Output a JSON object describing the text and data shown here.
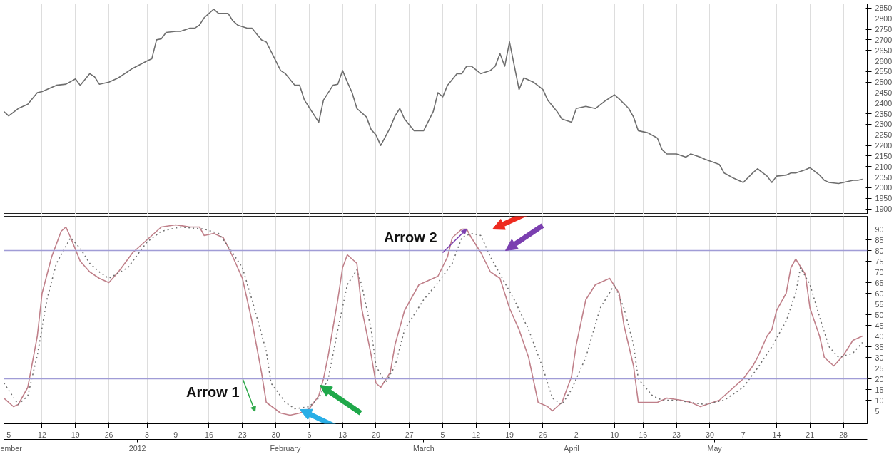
{
  "chart_data": [
    {
      "type": "line",
      "grid": "x",
      "tick_labels": "y",
      "xlim": [
        "2011-12-04",
        "2012-06-02"
      ],
      "ylim": [
        1875,
        2870
      ],
      "xticks": [
        {
          "value": "2011-12-05",
          "label": null
        },
        {
          "value": "2011-12-12",
          "label": null
        },
        {
          "value": "2011-12-19",
          "label": null
        },
        {
          "value": "2011-12-26",
          "label": null
        },
        {
          "value": "2012-01-03",
          "label": null
        },
        {
          "value": "2012-01-09",
          "label": null
        },
        {
          "value": "2012-01-16",
          "label": null
        },
        {
          "value": "2012-01-23",
          "label": null
        },
        {
          "value": "2012-01-30",
          "label": null
        },
        {
          "value": "2012-02-06",
          "label": null
        },
        {
          "value": "2012-02-13",
          "label": null
        },
        {
          "value": "2012-02-20",
          "label": null
        },
        {
          "value": "2012-02-27",
          "label": null
        },
        {
          "value": "2012-03-05",
          "label": null
        },
        {
          "value": "2012-03-12",
          "label": null
        },
        {
          "value": "2012-03-19",
          "label": null
        },
        {
          "value": "2012-03-26",
          "label": null
        },
        {
          "value": "2012-04-02",
          "label": null
        },
        {
          "value": "2012-04-10",
          "label": null
        },
        {
          "value": "2012-04-16",
          "label": null
        },
        {
          "value": "2012-04-23",
          "label": null
        },
        {
          "value": "2012-04-30",
          "label": null
        },
        {
          "value": "2012-05-07",
          "label": null
        },
        {
          "value": "2012-05-14",
          "label": null
        },
        {
          "value": "2012-05-21",
          "label": null
        },
        {
          "value": "2012-05-28",
          "label": null
        }
      ],
      "yticks": [
        1900,
        1950,
        2000,
        2050,
        2100,
        2150,
        2200,
        2250,
        2300,
        2350,
        2400,
        2450,
        2500,
        2550,
        2600,
        2650,
        2700,
        2750,
        2800,
        2850
      ],
      "series": [
        {
          "color": "#6e6e6e",
          "x": [
            "2011-12-04",
            "2011-12-05",
            "2011-12-07",
            "2011-12-09",
            "2011-12-11",
            "2011-12-12",
            "2011-12-15",
            "2011-12-17",
            "2011-12-19",
            "2011-12-20",
            "2011-12-22",
            "2011-12-23",
            "2011-12-24",
            "2011-12-26",
            "2011-12-28",
            "2011-12-31",
            "2012-01-03",
            "2012-01-04",
            "2012-01-05",
            "2012-01-06",
            "2012-01-07",
            "2012-01-09",
            "2012-01-10",
            "2012-01-12",
            "2012-01-13",
            "2012-01-14",
            "2012-01-15",
            "2012-01-17",
            "2012-01-18",
            "2012-01-20",
            "2012-01-21",
            "2012-01-22",
            "2012-01-24",
            "2012-01-25",
            "2012-01-27",
            "2012-01-28",
            "2012-01-29",
            "2012-01-31",
            "2012-02-01",
            "2012-02-03",
            "2012-02-04",
            "2012-02-05",
            "2012-02-08",
            "2012-02-09",
            "2012-02-11",
            "2012-02-12",
            "2012-02-13",
            "2012-02-14",
            "2012-02-15",
            "2012-02-16",
            "2012-02-18",
            "2012-02-19",
            "2012-02-20",
            "2012-02-21",
            "2012-02-23",
            "2012-02-24",
            "2012-02-25",
            "2012-02-26",
            "2012-02-28",
            "2012-03-01",
            "2012-03-03",
            "2012-03-04",
            "2012-03-05",
            "2012-03-06",
            "2012-03-08",
            "2012-03-09",
            "2012-03-10",
            "2012-03-11",
            "2012-03-13",
            "2012-03-15",
            "2012-03-16",
            "2012-03-17",
            "2012-03-18",
            "2012-03-19",
            "2012-03-21",
            "2012-03-22",
            "2012-03-24",
            "2012-03-26",
            "2012-03-27",
            "2012-03-29",
            "2012-03-30",
            "2012-04-01",
            "2012-04-02",
            "2012-04-04",
            "2012-04-06",
            "2012-04-08",
            "2012-04-10",
            "2012-04-11",
            "2012-04-13",
            "2012-04-14",
            "2012-04-15",
            "2012-04-17",
            "2012-04-19",
            "2012-04-20",
            "2012-04-21",
            "2012-04-23",
            "2012-04-25",
            "2012-04-26",
            "2012-04-28",
            "2012-04-29",
            "2012-05-02",
            "2012-05-03",
            "2012-05-05",
            "2012-05-07",
            "2012-05-09",
            "2012-05-10",
            "2012-05-12",
            "2012-05-13",
            "2012-05-14",
            "2012-05-16",
            "2012-05-17",
            "2012-05-18",
            "2012-05-20",
            "2012-05-21",
            "2012-05-23",
            "2012-05-24",
            "2012-05-25",
            "2012-05-27",
            "2012-05-28",
            "2012-05-30",
            "2012-05-31",
            "2012-06-01"
          ],
          "values": [
            2360,
            2340,
            2375,
            2395,
            2450,
            2455,
            2485,
            2490,
            2515,
            2485,
            2540,
            2525,
            2490,
            2500,
            2520,
            2565,
            2600,
            2610,
            2700,
            2705,
            2735,
            2740,
            2740,
            2755,
            2755,
            2770,
            2805,
            2845,
            2825,
            2825,
            2790,
            2770,
            2755,
            2755,
            2700,
            2690,
            2645,
            2555,
            2540,
            2485,
            2485,
            2415,
            2310,
            2415,
            2485,
            2490,
            2555,
            2500,
            2450,
            2375,
            2335,
            2275,
            2250,
            2200,
            2285,
            2340,
            2375,
            2325,
            2270,
            2270,
            2360,
            2450,
            2430,
            2485,
            2540,
            2540,
            2575,
            2575,
            2540,
            2555,
            2575,
            2635,
            2575,
            2690,
            2465,
            2520,
            2500,
            2465,
            2415,
            2360,
            2325,
            2310,
            2375,
            2385,
            2375,
            2410,
            2440,
            2420,
            2375,
            2335,
            2270,
            2260,
            2235,
            2180,
            2160,
            2160,
            2145,
            2160,
            2145,
            2135,
            2110,
            2070,
            2045,
            2025,
            2070,
            2090,
            2055,
            2025,
            2055,
            2060,
            2070,
            2070,
            2085,
            2095,
            2060,
            2035,
            2025,
            2020,
            2025,
            2035,
            2035,
            2040
          ]
        }
      ]
    },
    {
      "type": "line",
      "grid": "x",
      "xlim": [
        "2011-12-04",
        "2012-06-02"
      ],
      "ylim": [
        -1,
        96
      ],
      "xticks": [
        {
          "value": "2011-12-05",
          "label": "5"
        },
        {
          "value": "2011-12-12",
          "label": "12"
        },
        {
          "value": "2011-12-19",
          "label": "19"
        },
        {
          "value": "2011-12-26",
          "label": "26"
        },
        {
          "value": "2012-01-03",
          "label": "3"
        },
        {
          "value": "2012-01-09",
          "label": "9"
        },
        {
          "value": "2012-01-16",
          "label": "16"
        },
        {
          "value": "2012-01-23",
          "label": "23"
        },
        {
          "value": "2012-01-30",
          "label": "30"
        },
        {
          "value": "2012-02-06",
          "label": "6"
        },
        {
          "value": "2012-02-13",
          "label": "13"
        },
        {
          "value": "2012-02-20",
          "label": "20"
        },
        {
          "value": "2012-02-27",
          "label": "27"
        },
        {
          "value": "2012-03-05",
          "label": "5"
        },
        {
          "value": "2012-03-12",
          "label": "12"
        },
        {
          "value": "2012-03-19",
          "label": "19"
        },
        {
          "value": "2012-03-26",
          "label": "26"
        },
        {
          "value": "2012-04-02",
          "label": "2"
        },
        {
          "value": "2012-04-10",
          "label": "10"
        },
        {
          "value": "2012-04-16",
          "label": "16"
        },
        {
          "value": "2012-04-23",
          "label": "23"
        },
        {
          "value": "2012-04-30",
          "label": "30"
        },
        {
          "value": "2012-05-07",
          "label": "7"
        },
        {
          "value": "2012-05-14",
          "label": "14"
        },
        {
          "value": "2012-05-21",
          "label": "21"
        },
        {
          "value": "2012-05-28",
          "label": "28"
        }
      ],
      "x2lim": [
        "2011-12-04",
        "2012-06-02"
      ],
      "x2ticks": [
        {
          "value": "2011-12-04",
          "label": "ember"
        },
        {
          "value": "2012-01-01",
          "label": "2012"
        },
        {
          "value": "2012-02-01",
          "label": "February"
        },
        {
          "value": "2012-03-01",
          "label": "March"
        },
        {
          "value": "2012-04-01",
          "label": "April"
        },
        {
          "value": "2012-05-01",
          "label": "May"
        }
      ],
      "yticks": [
        5,
        10,
        15,
        20,
        25,
        30,
        35,
        40,
        45,
        50,
        55,
        60,
        65,
        70,
        75,
        80,
        85,
        90
      ],
      "ref_lines": [
        {
          "axis": "y",
          "value": 80,
          "color": "#a09cd6"
        },
        {
          "axis": "y",
          "value": 20,
          "color": "#a09cd6"
        }
      ],
      "annotations": [
        "Arrow 1",
        {
          "text": "Arrow 2",
          "x": "2012-03-10",
          "y": 90
        }
      ],
      "series": [
        {
          "color": "#c0808a",
          "line_style": "solid",
          "x": [
            "2011-12-04",
            "2011-12-06",
            "2011-12-07",
            "2011-12-09",
            "2011-12-11",
            "2011-12-12",
            "2011-12-14",
            "2011-12-16",
            "2011-12-17",
            "2011-12-18",
            "2011-12-20",
            "2011-12-22",
            "2011-12-24",
            "2011-12-26",
            "2011-12-28",
            "2011-12-31",
            "2012-01-04",
            "2012-01-06",
            "2012-01-09",
            "2012-01-12",
            "2012-01-14",
            "2012-01-15",
            "2012-01-17",
            "2012-01-19",
            "2012-01-21",
            "2012-01-23",
            "2012-01-25",
            "2012-01-27",
            "2012-01-28",
            "2012-01-31",
            "2012-02-02",
            "2012-02-04",
            "2012-02-06",
            "2012-02-08",
            "2012-02-09",
            "2012-02-10",
            "2012-02-12",
            "2012-02-13",
            "2012-02-14",
            "2012-02-16",
            "2012-02-17",
            "2012-02-19",
            "2012-02-20",
            "2012-02-21",
            "2012-02-23",
            "2012-02-24",
            "2012-02-26",
            "2012-02-29",
            "2012-03-03",
            "2012-03-04",
            "2012-03-06",
            "2012-03-07",
            "2012-03-09",
            "2012-03-10",
            "2012-03-11",
            "2012-03-13",
            "2012-03-15",
            "2012-03-17",
            "2012-03-19",
            "2012-03-21",
            "2012-03-23",
            "2012-03-25",
            "2012-03-27",
            "2012-03-28",
            "2012-03-30",
            "2012-04-01",
            "2012-04-02",
            "2012-04-04",
            "2012-04-06",
            "2012-04-09",
            "2012-04-11",
            "2012-04-12",
            "2012-04-14",
            "2012-04-15",
            "2012-04-17",
            "2012-04-19",
            "2012-04-21",
            "2012-04-24",
            "2012-04-26",
            "2012-04-28",
            "2012-05-02",
            "2012-05-03",
            "2012-05-05",
            "2012-05-07",
            "2012-05-09",
            "2012-05-10",
            "2012-05-12",
            "2012-05-13",
            "2012-05-14",
            "2012-05-16",
            "2012-05-17",
            "2012-05-18",
            "2012-05-20",
            "2012-05-21",
            "2012-05-23",
            "2012-05-24",
            "2012-05-26",
            "2012-05-28",
            "2012-05-30",
            "2012-06-01"
          ],
          "values": [
            11,
            7,
            8,
            16,
            40,
            60,
            77,
            89,
            91,
            86,
            75,
            70,
            67,
            65,
            70,
            79,
            87,
            91,
            92,
            91,
            91,
            87,
            88,
            86,
            77,
            67,
            47,
            23,
            9,
            4,
            3,
            4,
            6,
            12,
            20,
            31,
            57,
            72,
            78,
            74,
            53,
            31,
            18,
            16,
            23,
            36,
            52,
            64,
            67,
            68,
            77,
            86,
            90,
            90,
            86,
            79,
            70,
            67,
            53,
            43,
            30,
            9,
            7,
            5,
            9,
            21,
            36,
            57,
            64,
            67,
            60,
            45,
            26,
            9,
            9,
            9,
            11,
            10,
            9,
            7,
            10,
            12,
            16,
            20,
            26,
            30,
            40,
            43,
            52,
            60,
            72,
            76,
            69,
            53,
            40,
            30,
            26,
            31,
            38,
            40
          ]
        },
        {
          "color": "#707070",
          "line_style": "dotted",
          "x": [
            "2011-12-04",
            "2011-12-07",
            "2011-12-09",
            "2011-12-11",
            "2011-12-13",
            "2011-12-15",
            "2011-12-18",
            "2011-12-20",
            "2011-12-22",
            "2011-12-24",
            "2011-12-26",
            "2011-12-30",
            "2012-01-03",
            "2012-01-06",
            "2012-01-10",
            "2012-01-15",
            "2012-01-18",
            "2012-01-20",
            "2012-01-23",
            "2012-01-25",
            "2012-01-28",
            "2012-01-29",
            "2012-02-01",
            "2012-02-03",
            "2012-02-06",
            "2012-02-08",
            "2012-02-10",
            "2012-02-12",
            "2012-02-14",
            "2012-02-16",
            "2012-02-17",
            "2012-02-19",
            "2012-02-20",
            "2012-02-22",
            "2012-02-24",
            "2012-02-26",
            "2012-03-01",
            "2012-03-04",
            "2012-03-07",
            "2012-03-09",
            "2012-03-11",
            "2012-03-13",
            "2012-03-15",
            "2012-03-17",
            "2012-03-20",
            "2012-03-23",
            "2012-03-26",
            "2012-03-28",
            "2012-03-30",
            "2012-04-01",
            "2012-04-04",
            "2012-04-07",
            "2012-04-10",
            "2012-04-12",
            "2012-04-14",
            "2012-04-15",
            "2012-04-18",
            "2012-04-20",
            "2012-04-23",
            "2012-04-26",
            "2012-04-29",
            "2012-05-03",
            "2012-05-07",
            "2012-05-10",
            "2012-05-13",
            "2012-05-16",
            "2012-05-18",
            "2012-05-19",
            "2012-05-21",
            "2012-05-23",
            "2012-05-25",
            "2012-05-27",
            "2012-05-30",
            "2012-06-01"
          ],
          "values": [
            18,
            8,
            12,
            31,
            57,
            74,
            86,
            81,
            74,
            70,
            67,
            72,
            84,
            89,
            91,
            90,
            88,
            82,
            72,
            57,
            33,
            18,
            9,
            6,
            7,
            11,
            20,
            43,
            64,
            71,
            64,
            43,
            26,
            18,
            26,
            43,
            57,
            65,
            74,
            86,
            88,
            87,
            77,
            69,
            57,
            43,
            25,
            11,
            8,
            15,
            30,
            53,
            64,
            53,
            36,
            20,
            12,
            10,
            10,
            9,
            8,
            10,
            16,
            25,
            35,
            47,
            60,
            72,
            64,
            49,
            35,
            30,
            32,
            37
          ]
        }
      ]
    }
  ]
}
